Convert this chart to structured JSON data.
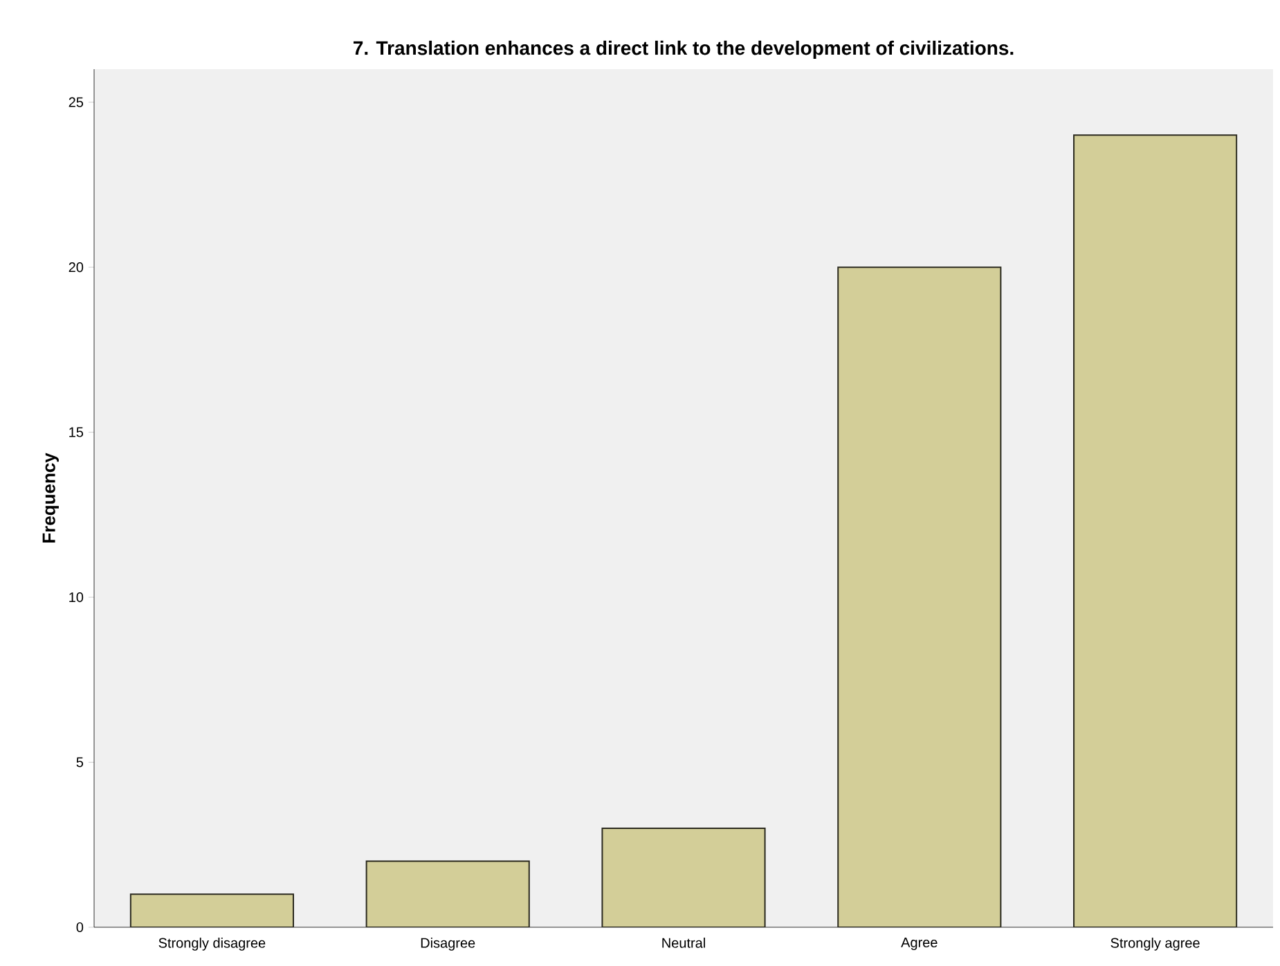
{
  "chart_data": {
    "type": "bar",
    "title": "7. Translation enhances a direct link to the development of civilizations.",
    "ylabel": "Frequency",
    "categories": [
      "Strongly disagree",
      "Disagree",
      "Neutral",
      "Agree",
      "Strongly agree"
    ],
    "values": [
      1,
      2,
      3,
      20,
      24
    ],
    "color": "#d3ce98",
    "ylim": [
      0,
      26
    ],
    "yticks": [
      0,
      5,
      10,
      15,
      20,
      25
    ]
  }
}
